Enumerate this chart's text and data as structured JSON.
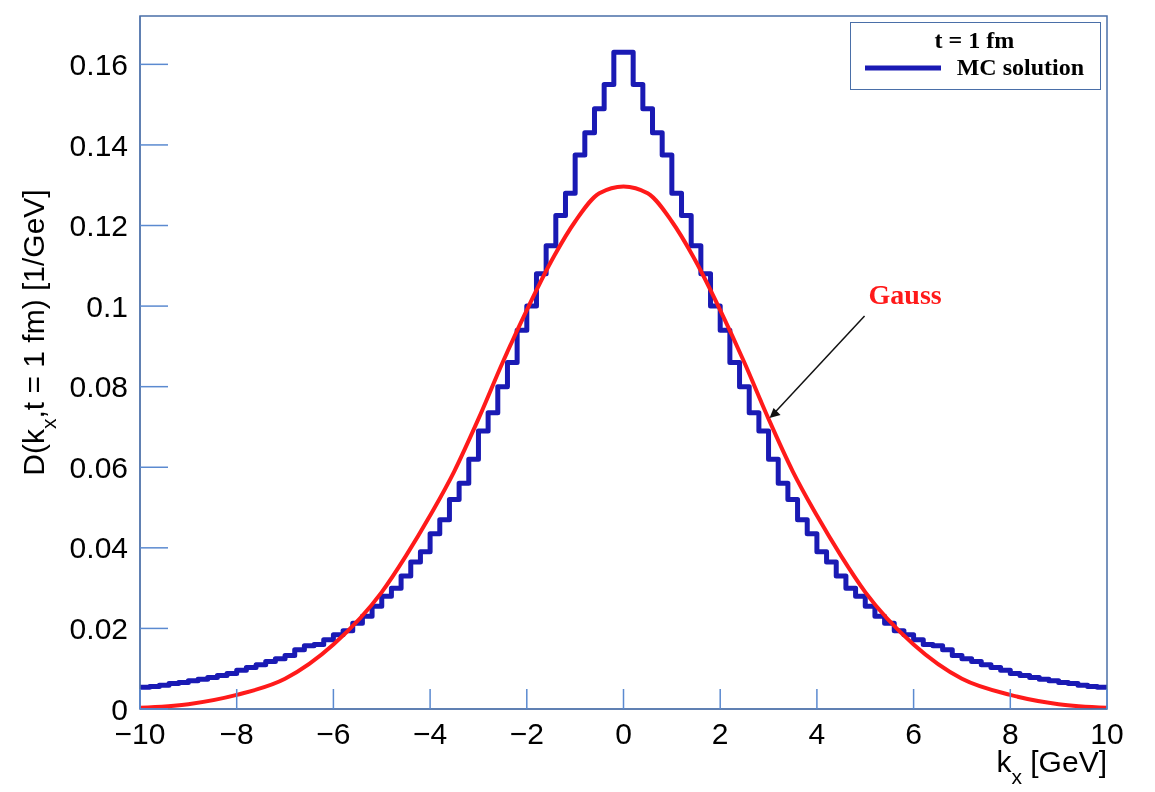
{
  "chart_data": {
    "type": "histogram",
    "xlabel": "k$_{x}$ [GeV]",
    "ylabel": "D(k$_{x}$,t = 1 fm) [1/GeV]",
    "legend_title": "t = 1 fm",
    "legend": "top right",
    "line_style": "solid",
    "marker": "none",
    "xlim": [
      -10,
      10
    ],
    "xticks": [
      {
        "value": -10,
        "label": "−10"
      },
      {
        "value": -8,
        "label": "−8"
      },
      {
        "value": -6,
        "label": "−6"
      },
      {
        "value": -4,
        "label": "−4"
      },
      {
        "value": -2,
        "label": "−2"
      },
      0,
      2,
      4,
      6,
      8,
      10
    ],
    "ylim": [
      0,
      0.172
    ],
    "yticks": [
      0,
      0.02,
      0.04,
      0.06,
      0.08,
      0.1,
      0.12,
      0.14,
      0.16
    ],
    "annotations": [
      {
        "text": "Gauss",
        "x": 3,
        "y": 0.072
      }
    ],
    "series": [
      {
        "type": "histogram",
        "name": "MC solution",
        "color": "#1a1ab4",
        "bins": [
          -10,
          -9.8,
          -9.6,
          -9.4,
          -9.2,
          -9,
          -8.8,
          -8.6,
          -8.4,
          -8.2,
          -8,
          -7.8,
          -7.6,
          -7.4,
          -7.2,
          -7,
          -6.8,
          -6.6,
          -6.4,
          -6.2,
          -6,
          -5.8,
          -5.6,
          -5.4,
          -5.2,
          -5,
          -4.8,
          -4.6,
          -4.4,
          -4.2,
          -4,
          -3.8,
          -3.6,
          -3.4,
          -3.2,
          -3,
          -2.8,
          -2.6,
          -2.4,
          -2.2,
          -2,
          -1.8,
          -1.6,
          -1.4,
          -1.2,
          -1,
          -0.8,
          -0.6,
          -0.4,
          -0.2,
          0,
          0.2,
          0.4,
          0.6,
          0.8,
          1,
          1.2,
          1.4,
          1.6,
          1.8,
          2,
          2.2,
          2.4,
          2.6,
          2.8,
          3,
          3.2,
          3.4,
          3.6,
          3.8,
          4,
          4.2,
          4.4,
          4.6,
          4.8,
          5,
          5.2,
          5.4,
          5.6,
          5.8,
          6,
          6.2,
          6.4,
          6.6,
          6.8,
          7,
          7.2,
          7.4,
          7.6,
          7.8,
          8,
          8.2,
          8.4,
          8.6,
          8.8,
          9,
          9.2,
          9.4,
          9.6,
          9.8,
          10
        ],
        "values": [
          0.0054,
          0.0056,
          0.0059,
          0.0063,
          0.0066,
          0.007,
          0.0074,
          0.0078,
          0.0083,
          0.0088,
          0.0096,
          0.0103,
          0.011,
          0.0118,
          0.0125,
          0.0133,
          0.0147,
          0.0157,
          0.016,
          0.0172,
          0.0184,
          0.0194,
          0.0213,
          0.023,
          0.0255,
          0.028,
          0.03,
          0.033,
          0.0365,
          0.039,
          0.0435,
          0.047,
          0.052,
          0.056,
          0.062,
          0.069,
          0.0735,
          0.08,
          0.086,
          0.094,
          0.1,
          0.108,
          0.115,
          0.1225,
          0.128,
          0.1375,
          0.143,
          0.149,
          0.155,
          0.163,
          0.163,
          0.155,
          0.149,
          0.143,
          0.1375,
          0.128,
          0.1225,
          0.115,
          0.108,
          0.1,
          0.094,
          0.086,
          0.08,
          0.0735,
          0.069,
          0.062,
          0.056,
          0.052,
          0.047,
          0.0435,
          0.039,
          0.0365,
          0.033,
          0.03,
          0.028,
          0.0255,
          0.023,
          0.0213,
          0.0194,
          0.0184,
          0.0172,
          0.016,
          0.0157,
          0.0147,
          0.0133,
          0.0125,
          0.0118,
          0.011,
          0.0103,
          0.0096,
          0.0088,
          0.0083,
          0.0078,
          0.0074,
          0.007,
          0.0066,
          0.0063,
          0.0059,
          0.0056,
          0.0054
        ]
      },
      {
        "type": "line",
        "color": "#ff1a1a",
        "x": [
          -10,
          -9,
          -8,
          -7,
          -6,
          -5,
          -4.5,
          -4,
          -3.5,
          -3,
          -2.5,
          -2,
          -1.5,
          -1,
          -0.5,
          0,
          0.5,
          1,
          1.5,
          2,
          2.5,
          3,
          3.5,
          4,
          4.5,
          5,
          6,
          7,
          8,
          9,
          10
        ],
        "values": [
          0.0003,
          0.0012,
          0.0035,
          0.0075,
          0.016,
          0.029,
          0.038,
          0.048,
          0.059,
          0.072,
          0.086,
          0.099,
          0.111,
          0.121,
          0.128,
          0.1297,
          0.128,
          0.121,
          0.111,
          0.099,
          0.086,
          0.072,
          0.059,
          0.048,
          0.038,
          0.029,
          0.016,
          0.0075,
          0.0035,
          0.0012,
          0.0003
        ]
      }
    ]
  }
}
